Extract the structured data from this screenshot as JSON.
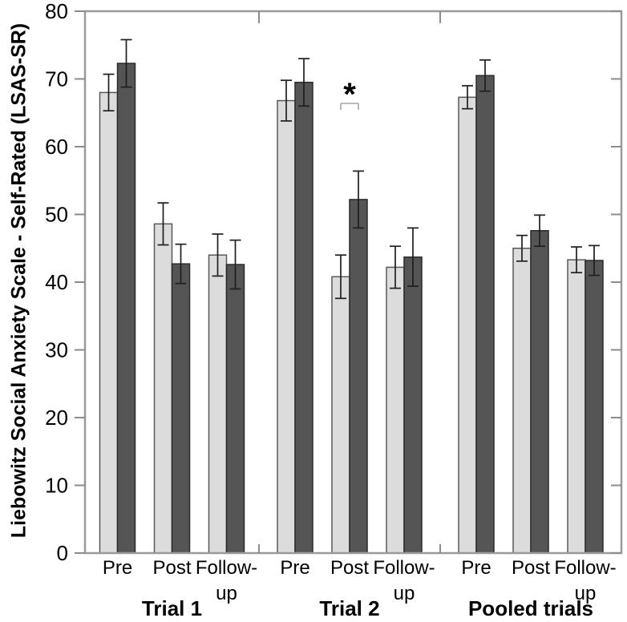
{
  "chart_data": {
    "type": "bar",
    "title": "",
    "xlabel": "",
    "ylabel": "Liebowitz Social Anxiety Scale - Self-Rated (LSAS-SR)",
    "ylim": [
      0,
      80
    ],
    "ytick_step": 10,
    "grid": false,
    "legend": "none",
    "series": [
      {
        "name": "light-gray-bars",
        "fill": "#dcdcdc",
        "stroke": "#595959"
      },
      {
        "name": "dark-gray-bars",
        "fill": "#555555",
        "stroke": "#2b2b2b"
      }
    ],
    "groups": [
      {
        "label": "Trial 1",
        "bars": [
          {
            "category": "Pre",
            "category_lines": [
              "Pre"
            ],
            "values": [
              68.0,
              72.3
            ],
            "errors": [
              2.7,
              3.5
            ]
          },
          {
            "category": "Post",
            "category_lines": [
              "Post"
            ],
            "values": [
              48.6,
              42.7
            ],
            "errors": [
              3.1,
              2.9
            ]
          },
          {
            "category": "Follow-up",
            "category_lines": [
              "Follow-",
              "up"
            ],
            "values": [
              44.0,
              42.6
            ],
            "errors": [
              3.1,
              3.6
            ]
          }
        ]
      },
      {
        "label": "Trial 2",
        "bars": [
          {
            "category": "Pre",
            "category_lines": [
              "Pre"
            ],
            "values": [
              66.8,
              69.5
            ],
            "errors": [
              3.0,
              3.5
            ]
          },
          {
            "category": "Post",
            "category_lines": [
              "Post"
            ],
            "values": [
              40.8,
              52.2
            ],
            "errors": [
              3.2,
              4.2
            ]
          },
          {
            "category": "Follow-up",
            "category_lines": [
              "Follow-",
              "up"
            ],
            "values": [
              42.2,
              43.7
            ],
            "errors": [
              3.1,
              4.3
            ]
          }
        ]
      },
      {
        "label": "Pooled trials",
        "bars": [
          {
            "category": "Pre",
            "category_lines": [
              "Pre"
            ],
            "values": [
              67.3,
              70.5
            ],
            "errors": [
              1.7,
              2.3
            ]
          },
          {
            "category": "Post",
            "category_lines": [
              "Post"
            ],
            "values": [
              45.0,
              47.6
            ],
            "errors": [
              1.9,
              2.3
            ]
          },
          {
            "category": "Follow-up",
            "category_lines": [
              "Follow-",
              "up"
            ],
            "values": [
              43.3,
              43.2
            ],
            "errors": [
              1.9,
              2.2
            ]
          }
        ]
      }
    ],
    "significance": [
      {
        "group": "Trial 2",
        "category": "Post",
        "label": "*"
      }
    ],
    "style": {
      "frame_color": "#9a9a9a",
      "tick_color": "#8c8c8c",
      "error_color": "#1f1f1f",
      "sig_color": "#a6a6a6",
      "text_color": "#000000",
      "background": "#ffffff"
    }
  }
}
